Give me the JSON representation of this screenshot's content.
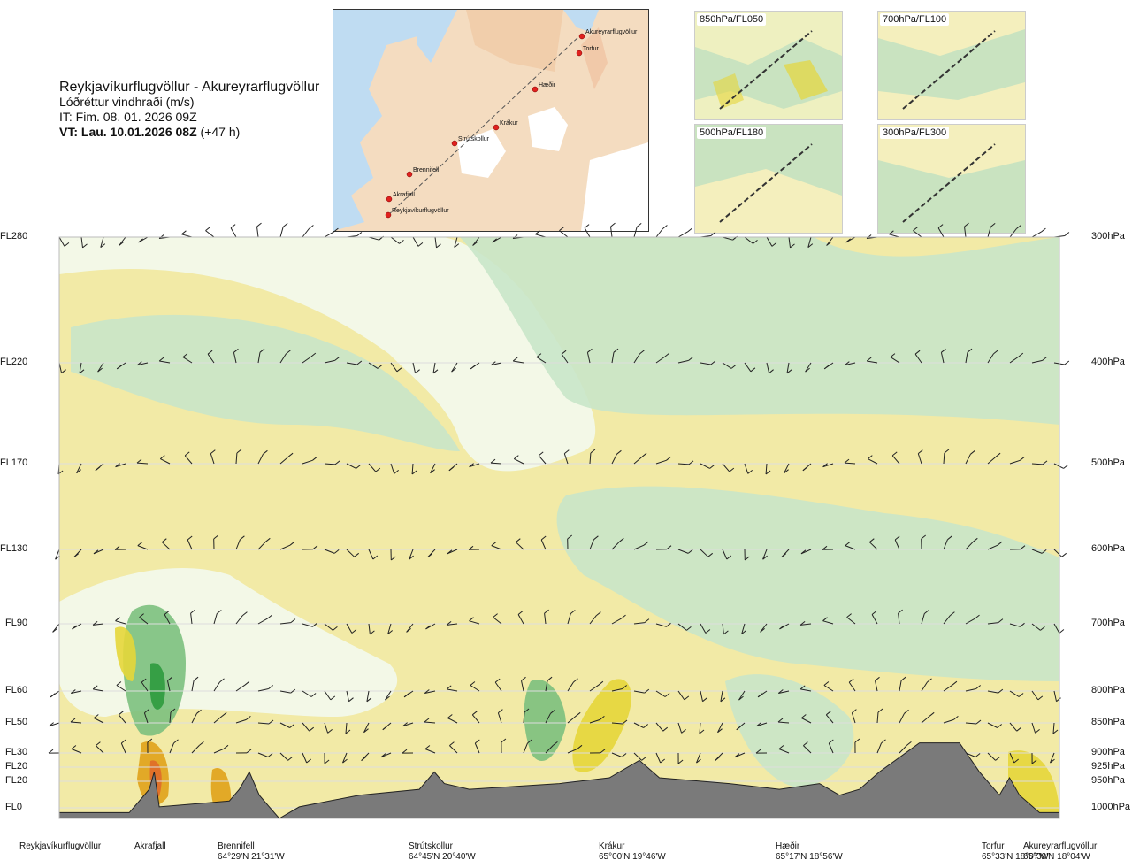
{
  "title": {
    "route": "Reykjavíkurflugvöllur - Akureyrarflugvöllur",
    "parameter": "Lóðréttur vindhraði (m/s)",
    "issue_time": "IT: Fim. 08. 01. 2026 09Z",
    "valid_time": "VT: Lau. 10.01.2026 08Z",
    "lead": "(+47 h)"
  },
  "overview_map": {
    "waypoints": [
      "Akureyrarflugvöllur",
      "Torfur",
      "Hæðir",
      "Krákur",
      "Strútskollur",
      "Brennifell",
      "Akrafjall",
      "Reykjavíkurflugvöllur"
    ]
  },
  "level_maps": [
    {
      "label": "850hPa/FL050"
    },
    {
      "label": "700hPa/FL100"
    },
    {
      "label": "500hPa/FL180"
    },
    {
      "label": "300hPa/FL300"
    }
  ],
  "chart_data": {
    "type": "heatmap",
    "title": "Lóðréttur vindhraði (m/s)",
    "flight_levels": [
      "FL280",
      "FL220",
      "FL170",
      "FL130",
      "FL90",
      "FL60",
      "FL50",
      "FL30",
      "FL20",
      "FL20",
      "FL0"
    ],
    "pressure_levels": [
      "300hPa",
      "400hPa",
      "500hPa",
      "600hPa",
      "700hPa",
      "800hPa",
      "850hPa",
      "900hPa",
      "925hPa",
      "950hPa",
      "1000hPa"
    ],
    "x_locations": [
      {
        "name": "Reykjavíkurflugvöllur",
        "coord": "",
        "frac": 0.0
      },
      {
        "name": "Akrafjall",
        "coord": "",
        "frac": 0.09
      },
      {
        "name": "Brennifell",
        "coord": "64°29'N 21°31'W",
        "frac": 0.19
      },
      {
        "name": "Strútskollur",
        "coord": "64°45'N 20°40'W",
        "frac": 0.38
      },
      {
        "name": "Krákur",
        "coord": "65°00'N 19°46'W",
        "frac": 0.575
      },
      {
        "name": "Hæðir",
        "coord": "65°17'N 18°56'W",
        "frac": 0.76
      },
      {
        "name": "Torfur",
        "coord": "65°33'N 18°07'W",
        "frac": 0.955
      },
      {
        "name": "Akureyrarflugvöllur",
        "coord": "65°39'N 18°04'W",
        "frac": 1.0
      }
    ],
    "color_scale": {
      "downward_strong": "#2e9a3e",
      "downward": "#7cc07e",
      "downward_weak": "#c9e6c9",
      "near_zero": "#f3f9ee",
      "upward_weak": "#f5eeb0",
      "upward": "#e6d63a",
      "upward_strong": "#e0a21a",
      "upward_very_strong": "#e06a2a",
      "terrain": "#7a7a7a"
    },
    "terrain_profile_frac": [
      [
        0.0,
        0.01
      ],
      [
        0.07,
        0.01
      ],
      [
        0.09,
        0.05
      ],
      [
        0.095,
        0.08
      ],
      [
        0.1,
        0.02
      ],
      [
        0.17,
        0.03
      ],
      [
        0.18,
        0.05
      ],
      [
        0.19,
        0.08
      ],
      [
        0.2,
        0.04
      ],
      [
        0.21,
        0.02
      ],
      [
        0.22,
        0.0
      ],
      [
        0.24,
        0.02
      ],
      [
        0.3,
        0.04
      ],
      [
        0.36,
        0.05
      ],
      [
        0.375,
        0.08
      ],
      [
        0.385,
        0.06
      ],
      [
        0.41,
        0.05
      ],
      [
        0.5,
        0.06
      ],
      [
        0.55,
        0.07
      ],
      [
        0.58,
        0.1
      ],
      [
        0.6,
        0.07
      ],
      [
        0.67,
        0.06
      ],
      [
        0.72,
        0.05
      ],
      [
        0.76,
        0.06
      ],
      [
        0.78,
        0.04
      ],
      [
        0.8,
        0.05
      ],
      [
        0.82,
        0.08
      ],
      [
        0.86,
        0.13
      ],
      [
        0.9,
        0.13
      ],
      [
        0.92,
        0.08
      ],
      [
        0.94,
        0.04
      ],
      [
        0.95,
        0.07
      ],
      [
        0.96,
        0.04
      ],
      [
        0.98,
        0.01
      ],
      [
        1.0,
        0.01
      ]
    ]
  }
}
